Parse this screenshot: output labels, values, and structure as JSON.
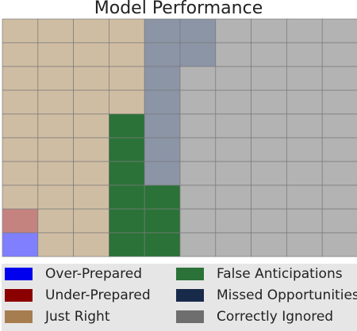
{
  "chart_data": {
    "type": "heatmap",
    "title": "Model Performance",
    "rows": 10,
    "cols": 10,
    "categories": [
      {
        "key": "OP",
        "name": "Over-Prepared",
        "legend_color": "#0000ee",
        "cell_color": "#8080ff"
      },
      {
        "key": "UP",
        "name": "Under-Prepared",
        "legend_color": "#8b0000",
        "cell_color": "#c58380"
      },
      {
        "key": "JR",
        "name": "Just Right",
        "legend_color": "#a67d4f",
        "cell_color": "#cfbda3"
      },
      {
        "key": "FA",
        "name": "False Anticipations",
        "legend_color": "#2a7237",
        "cell_color": "#2a7237"
      },
      {
        "key": "MO",
        "name": "Missed Opportunities",
        "legend_color": "#182a4a",
        "cell_color": "#8b95a6"
      },
      {
        "key": "CI",
        "name": "Correctly Ignored",
        "legend_color": "#6e6e6e",
        "cell_color": "#b3b3b3"
      }
    ],
    "grid": [
      [
        "JR",
        "JR",
        "JR",
        "JR",
        "MO",
        "MO",
        "CI",
        "CI",
        "CI",
        "CI"
      ],
      [
        "JR",
        "JR",
        "JR",
        "JR",
        "MO",
        "MO",
        "CI",
        "CI",
        "CI",
        "CI"
      ],
      [
        "JR",
        "JR",
        "JR",
        "JR",
        "MO",
        "CI",
        "CI",
        "CI",
        "CI",
        "CI"
      ],
      [
        "JR",
        "JR",
        "JR",
        "JR",
        "MO",
        "CI",
        "CI",
        "CI",
        "CI",
        "CI"
      ],
      [
        "JR",
        "JR",
        "JR",
        "FA",
        "MO",
        "CI",
        "CI",
        "CI",
        "CI",
        "CI"
      ],
      [
        "JR",
        "JR",
        "JR",
        "FA",
        "MO",
        "CI",
        "CI",
        "CI",
        "CI",
        "CI"
      ],
      [
        "JR",
        "JR",
        "JR",
        "FA",
        "MO",
        "CI",
        "CI",
        "CI",
        "CI",
        "CI"
      ],
      [
        "JR",
        "JR",
        "JR",
        "FA",
        "FA",
        "CI",
        "CI",
        "CI",
        "CI",
        "CI"
      ],
      [
        "UP",
        "JR",
        "JR",
        "FA",
        "FA",
        "CI",
        "CI",
        "CI",
        "CI",
        "CI"
      ],
      [
        "OP",
        "JR",
        "JR",
        "FA",
        "FA",
        "CI",
        "CI",
        "CI",
        "CI",
        "CI"
      ]
    ],
    "gridline_color": "#7a7a7a",
    "legend_background": "#e6e6e6",
    "legend_position": "bottom"
  }
}
